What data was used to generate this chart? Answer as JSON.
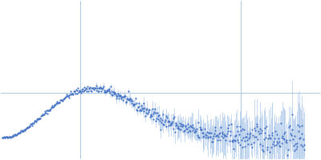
{
  "dot_color": "#4472C4",
  "error_color": "#a8c4e8",
  "background_color": "#ffffff",
  "grid_color": "#aac8e0",
  "xlim": [
    0.0,
    1.0
  ],
  "ylim": [
    -0.05,
    0.32
  ],
  "figsize": [
    4.0,
    2.0
  ],
  "dpi": 100,
  "seed": 42,
  "n_points": 500,
  "peak_val": 0.115
}
